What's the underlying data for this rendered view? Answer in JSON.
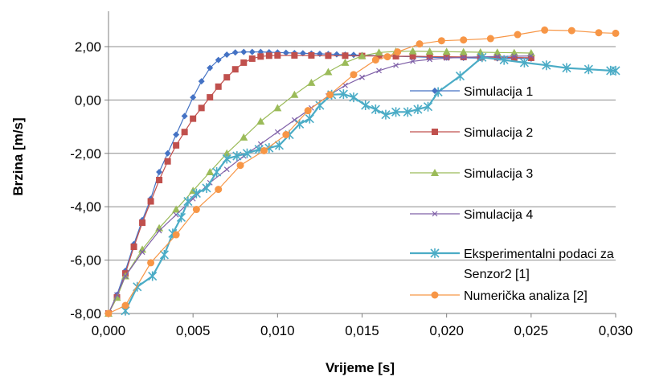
{
  "chart_data": {
    "type": "line",
    "title": "",
    "xlabel": "Vrijeme [s]",
    "ylabel": "Brzina [m/s]",
    "xlim": [
      0,
      0.03
    ],
    "ylim": [
      -8,
      2.5
    ],
    "x_ticks": [
      0,
      0.005,
      0.01,
      0.015,
      0.02,
      0.025,
      0.03
    ],
    "x_tick_labels": [
      "0,000",
      "0,005",
      "0,010",
      "0,015",
      "0,020",
      "0,025",
      "0,030"
    ],
    "y_ticks": [
      -8,
      -6,
      -4,
      -2,
      0,
      2
    ],
    "y_tick_labels": [
      "-8,00",
      "-6,00",
      "-4,00",
      "-2,00",
      "0,00",
      "2,00"
    ],
    "grid": "horizontal",
    "legend_position": "right-inside",
    "series": [
      {
        "name": "Simulacija 1",
        "color": "#4472c4",
        "marker": "diamond",
        "x": [
          0,
          0.0005,
          0.001,
          0.0015,
          0.002,
          0.0025,
          0.003,
          0.0035,
          0.004,
          0.0045,
          0.005,
          0.0055,
          0.006,
          0.0065,
          0.007,
          0.0075,
          0.008,
          0.0085,
          0.009,
          0.0095,
          0.01,
          0.0105,
          0.011,
          0.0115,
          0.012,
          0.0125,
          0.013,
          0.0135,
          0.014,
          0.0145,
          0.015,
          0.016,
          0.017,
          0.018,
          0.019,
          0.02,
          0.021,
          0.022,
          0.023,
          0.024,
          0.025
        ],
        "y": [
          -8.0,
          -7.3,
          -6.4,
          -5.4,
          -4.5,
          -3.7,
          -2.7,
          -2.0,
          -1.3,
          -0.6,
          0.1,
          0.7,
          1.2,
          1.5,
          1.7,
          1.78,
          1.8,
          1.8,
          1.8,
          1.79,
          1.78,
          1.77,
          1.76,
          1.75,
          1.74,
          1.73,
          1.72,
          1.71,
          1.7,
          1.69,
          1.68,
          1.66,
          1.64,
          1.62,
          1.6,
          1.59,
          1.58,
          1.57,
          1.56,
          1.56,
          1.55
        ]
      },
      {
        "name": "Simulacija 2",
        "color": "#c0504d",
        "marker": "square",
        "x": [
          0,
          0.0005,
          0.001,
          0.0015,
          0.002,
          0.0025,
          0.003,
          0.0035,
          0.004,
          0.0045,
          0.005,
          0.0055,
          0.006,
          0.0065,
          0.007,
          0.0075,
          0.008,
          0.0085,
          0.009,
          0.0095,
          0.01,
          0.011,
          0.012,
          0.013,
          0.014,
          0.015,
          0.016,
          0.017,
          0.018,
          0.019,
          0.02,
          0.021,
          0.022,
          0.023,
          0.024,
          0.025
        ],
        "y": [
          -8.0,
          -7.4,
          -6.5,
          -5.5,
          -4.6,
          -3.8,
          -3.0,
          -2.3,
          -1.7,
          -1.2,
          -0.7,
          -0.3,
          0.1,
          0.5,
          0.85,
          1.15,
          1.4,
          1.55,
          1.63,
          1.66,
          1.67,
          1.67,
          1.67,
          1.66,
          1.66,
          1.65,
          1.65,
          1.64,
          1.64,
          1.63,
          1.62,
          1.61,
          1.6,
          1.6,
          1.59,
          1.58
        ]
      },
      {
        "name": "Simulacija 3",
        "color": "#9bbb59",
        "marker": "triangle",
        "x": [
          0,
          0.0005,
          0.001,
          0.002,
          0.003,
          0.004,
          0.005,
          0.006,
          0.007,
          0.008,
          0.009,
          0.01,
          0.011,
          0.012,
          0.013,
          0.014,
          0.015,
          0.016,
          0.017,
          0.018,
          0.019,
          0.02,
          0.021,
          0.022,
          0.023,
          0.024,
          0.025
        ],
        "y": [
          -8.0,
          -7.4,
          -6.6,
          -5.6,
          -4.8,
          -4.1,
          -3.4,
          -2.7,
          -2.0,
          -1.4,
          -0.8,
          -0.3,
          0.2,
          0.65,
          1.05,
          1.4,
          1.65,
          1.78,
          1.82,
          1.83,
          1.82,
          1.81,
          1.8,
          1.79,
          1.78,
          1.77,
          1.76
        ]
      },
      {
        "name": "Simulacija 4",
        "color": "#7f60a8",
        "marker": "x",
        "x": [
          0,
          0.0005,
          0.001,
          0.002,
          0.003,
          0.004,
          0.005,
          0.006,
          0.007,
          0.008,
          0.009,
          0.01,
          0.011,
          0.012,
          0.013,
          0.014,
          0.015,
          0.016,
          0.017,
          0.018,
          0.019,
          0.02,
          0.021,
          0.022,
          0.023,
          0.024,
          0.025
        ],
        "y": [
          -8.0,
          -7.3,
          -6.6,
          -5.7,
          -4.9,
          -4.3,
          -3.7,
          -3.1,
          -2.6,
          -2.1,
          -1.65,
          -1.2,
          -0.75,
          -0.3,
          0.15,
          0.55,
          0.85,
          1.1,
          1.3,
          1.45,
          1.52,
          1.57,
          1.6,
          1.62,
          1.63,
          1.64,
          1.65
        ]
      },
      {
        "name": "Eksperimentalni podaci za Senzor2 [1]",
        "color": "#4bacc6",
        "marker": "star",
        "x": [
          0.001,
          0.0017,
          0.0026,
          0.0033,
          0.0038,
          0.0043,
          0.0047,
          0.0052,
          0.0058,
          0.0064,
          0.007,
          0.0076,
          0.0082,
          0.0089,
          0.0095,
          0.0101,
          0.0107,
          0.0113,
          0.0119,
          0.0125,
          0.0132,
          0.0139,
          0.0145,
          0.0152,
          0.0158,
          0.0164,
          0.017,
          0.0177,
          0.0183,
          0.0189,
          0.0195,
          0.0208,
          0.0221,
          0.0234,
          0.0246,
          0.0259,
          0.0271,
          0.0284,
          0.0297,
          0.03
        ],
        "y": [
          -7.9,
          -7.0,
          -6.6,
          -5.8,
          -5.0,
          -4.4,
          -3.8,
          -3.5,
          -3.3,
          -2.7,
          -2.2,
          -2.1,
          -2.0,
          -1.85,
          -1.8,
          -1.7,
          -1.3,
          -0.9,
          -0.7,
          -0.2,
          0.2,
          0.22,
          0.1,
          -0.2,
          -0.35,
          -0.55,
          -0.45,
          -0.45,
          -0.35,
          -0.25,
          0.3,
          0.9,
          1.6,
          1.5,
          1.4,
          1.3,
          1.2,
          1.15,
          1.1,
          1.1
        ]
      },
      {
        "name": "Numerička analiza [2]",
        "color": "#f79646",
        "marker": "circle",
        "x": [
          0,
          0.001,
          0.0025,
          0.004,
          0.0052,
          0.0065,
          0.0078,
          0.0092,
          0.0105,
          0.0118,
          0.0131,
          0.0145,
          0.0158,
          0.0165,
          0.0171,
          0.0184,
          0.0197,
          0.021,
          0.0226,
          0.0242,
          0.0258,
          0.0274,
          0.029,
          0.03
        ],
        "y": [
          -8.0,
          -7.7,
          -6.1,
          -5.05,
          -4.1,
          -3.35,
          -2.45,
          -1.9,
          -1.3,
          -0.4,
          0.2,
          0.95,
          1.5,
          1.62,
          1.8,
          2.1,
          2.22,
          2.25,
          2.3,
          2.45,
          2.62,
          2.6,
          2.52,
          2.5
        ]
      }
    ]
  }
}
